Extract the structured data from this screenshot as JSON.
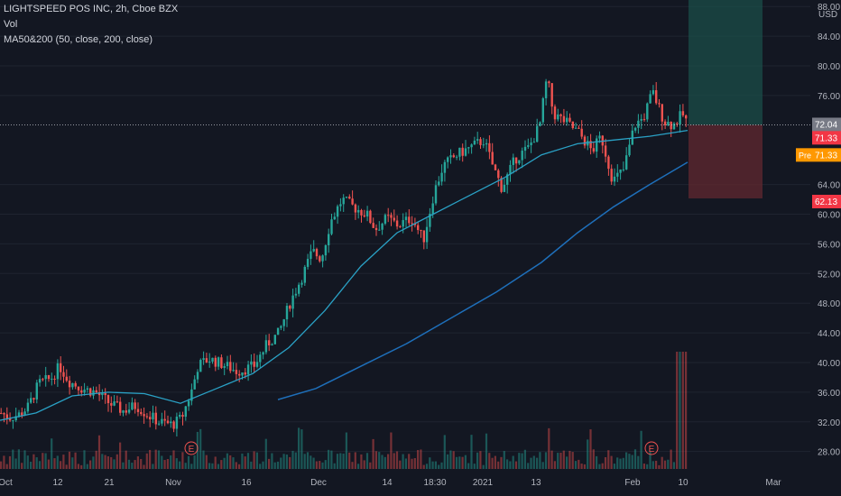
{
  "chart_data": {
    "type": "candlestick",
    "title": "LIGHTSPEED POS INC, 2h, Cboe BZX",
    "indicators": [
      "Vol",
      "MA50&200 (50, close, 200, close)"
    ],
    "y_axis": {
      "unit": "USD",
      "ticks": [
        28.0,
        32.0,
        36.0,
        40.0,
        44.0,
        48.0,
        52.0,
        56.0,
        60.0,
        64.0,
        76.0,
        80.0,
        84.0,
        88.0
      ],
      "tick_labels": [
        "28.00",
        "32.00",
        "36.00",
        "40.00",
        "44.00",
        "48.00",
        "52.00",
        "56.00",
        "60.00",
        "64.00",
        "76.00",
        "80.00",
        "84.00",
        "88.00"
      ],
      "range": [
        24.8,
        89.0
      ]
    },
    "x_axis": {
      "tick_labels": [
        "Oct",
        "12",
        "21",
        "Nov",
        "16",
        "Dec",
        "14",
        "18:30",
        "2021",
        "13",
        "Feb",
        "10",
        "Mar"
      ]
    },
    "price_labels": [
      {
        "value": 72.04,
        "label": "72.04",
        "color": "#787b86"
      },
      {
        "value": 71.33,
        "label": "71.33",
        "color": "#f23645"
      },
      {
        "value": 71.33,
        "label": "71.33",
        "prefix": "Pre",
        "color": "#ff9800"
      },
      {
        "value": 62.13,
        "label": "62.13",
        "color": "#f23645"
      }
    ],
    "earnings_markers": [
      "E",
      "E"
    ],
    "position_tool": {
      "entry": 72.04,
      "target": 89.0,
      "stop": 62.13
    },
    "price_path": [
      {
        "x": 0,
        "y": 33.2
      },
      {
        "x": 10,
        "y": 32.6
      },
      {
        "x": 20,
        "y": 33.0
      },
      {
        "x": 30,
        "y": 34.0
      },
      {
        "x": 42,
        "y": 37.2
      },
      {
        "x": 55,
        "y": 37.8
      },
      {
        "x": 65,
        "y": 39.5
      },
      {
        "x": 75,
        "y": 37.5
      },
      {
        "x": 90,
        "y": 36.5
      },
      {
        "x": 105,
        "y": 36.0
      },
      {
        "x": 120,
        "y": 34.5
      },
      {
        "x": 135,
        "y": 33.5
      },
      {
        "x": 150,
        "y": 34.2
      },
      {
        "x": 162,
        "y": 33.0
      },
      {
        "x": 175,
        "y": 32.0
      },
      {
        "x": 190,
        "y": 31.6
      },
      {
        "x": 200,
        "y": 32.5
      },
      {
        "x": 212,
        "y": 36.5
      },
      {
        "x": 218,
        "y": 39.5
      },
      {
        "x": 230,
        "y": 40.5
      },
      {
        "x": 245,
        "y": 39.8
      },
      {
        "x": 262,
        "y": 38.8
      },
      {
        "x": 280,
        "y": 39.5
      },
      {
        "x": 295,
        "y": 42.5
      },
      {
        "x": 308,
        "y": 44.0
      },
      {
        "x": 320,
        "y": 48.0
      },
      {
        "x": 335,
        "y": 52.0
      },
      {
        "x": 345,
        "y": 55.0
      },
      {
        "x": 355,
        "y": 54.0
      },
      {
        "x": 365,
        "y": 59.0
      },
      {
        "x": 378,
        "y": 62.0
      },
      {
        "x": 390,
        "y": 61.0
      },
      {
        "x": 405,
        "y": 60.0
      },
      {
        "x": 415,
        "y": 58.0
      },
      {
        "x": 428,
        "y": 59.5
      },
      {
        "x": 440,
        "y": 58.5
      },
      {
        "x": 455,
        "y": 59.5
      },
      {
        "x": 468,
        "y": 56.5
      },
      {
        "x": 480,
        "y": 63.0
      },
      {
        "x": 490,
        "y": 66.5
      },
      {
        "x": 505,
        "y": 68.0
      },
      {
        "x": 520,
        "y": 69.0
      },
      {
        "x": 535,
        "y": 70.0
      },
      {
        "x": 545,
        "y": 66.5
      },
      {
        "x": 555,
        "y": 63.5
      },
      {
        "x": 570,
        "y": 67.5
      },
      {
        "x": 585,
        "y": 69.0
      },
      {
        "x": 597,
        "y": 72.0
      },
      {
        "x": 605,
        "y": 78.5
      },
      {
        "x": 612,
        "y": 73.5
      },
      {
        "x": 625,
        "y": 72.5
      },
      {
        "x": 640,
        "y": 71.0
      },
      {
        "x": 655,
        "y": 68.5
      },
      {
        "x": 665,
        "y": 70.5
      },
      {
        "x": 678,
        "y": 64.5
      },
      {
        "x": 690,
        "y": 66.0
      },
      {
        "x": 702,
        "y": 72.0
      },
      {
        "x": 712,
        "y": 73.0
      },
      {
        "x": 722,
        "y": 76.5
      },
      {
        "x": 735,
        "y": 72.5
      },
      {
        "x": 745,
        "y": 72.0
      },
      {
        "x": 755,
        "y": 73.5
      },
      {
        "x": 762,
        "y": 72.0
      }
    ],
    "ma50": [
      {
        "x": 0,
        "y": 32.2
      },
      {
        "x": 40,
        "y": 33.2
      },
      {
        "x": 80,
        "y": 35.5
      },
      {
        "x": 120,
        "y": 36.0
      },
      {
        "x": 160,
        "y": 35.8
      },
      {
        "x": 200,
        "y": 34.5
      },
      {
        "x": 240,
        "y": 36.5
      },
      {
        "x": 280,
        "y": 38.5
      },
      {
        "x": 320,
        "y": 42.0
      },
      {
        "x": 360,
        "y": 47.0
      },
      {
        "x": 400,
        "y": 53.0
      },
      {
        "x": 440,
        "y": 57.5
      },
      {
        "x": 480,
        "y": 60.0
      },
      {
        "x": 520,
        "y": 62.5
      },
      {
        "x": 560,
        "y": 65.0
      },
      {
        "x": 600,
        "y": 68.0
      },
      {
        "x": 640,
        "y": 69.5
      },
      {
        "x": 680,
        "y": 70.0
      },
      {
        "x": 720,
        "y": 70.5
      },
      {
        "x": 762,
        "y": 71.3
      }
    ],
    "ma200": [
      {
        "x": 308,
        "y": 35.0
      },
      {
        "x": 350,
        "y": 36.5
      },
      {
        "x": 400,
        "y": 39.5
      },
      {
        "x": 450,
        "y": 42.5
      },
      {
        "x": 500,
        "y": 46.0
      },
      {
        "x": 550,
        "y": 49.5
      },
      {
        "x": 600,
        "y": 53.5
      },
      {
        "x": 640,
        "y": 57.5
      },
      {
        "x": 680,
        "y": 61.0
      },
      {
        "x": 720,
        "y": 64.0
      },
      {
        "x": 762,
        "y": 67.0
      }
    ]
  },
  "legend": {
    "title": "LIGHTSPEED POS INC, 2h, Cboe BZX",
    "vol": "Vol",
    "ma": "MA50&200 (50, close, 200, close)"
  },
  "colors": {
    "up": "#26a69a",
    "down": "#ef5350",
    "ma50": "#2aa1c5",
    "ma200": "#1e6fba",
    "background": "#131722",
    "axis_text": "#b2b5be",
    "grid": "#1f2430"
  }
}
